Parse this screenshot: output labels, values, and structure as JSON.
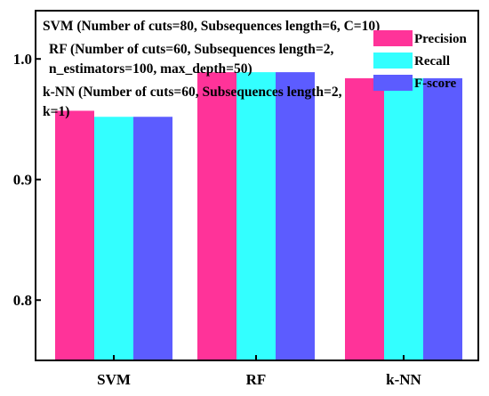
{
  "chart_data": {
    "type": "bar",
    "categories": [
      "SVM",
      "RF",
      "k-NN"
    ],
    "series": [
      {
        "name": "Precision",
        "color": "#ff3399",
        "values": [
          0.957,
          0.989,
          0.984
        ]
      },
      {
        "name": "Recall",
        "color": "#33ffff",
        "values": [
          0.952,
          0.989,
          0.984
        ]
      },
      {
        "name": "F-score",
        "color": "#5c5cff",
        "values": [
          0.952,
          0.989,
          0.984
        ]
      }
    ],
    "ylim": [
      0.75,
      1.04
    ],
    "yticks": [
      {
        "value": 0.8,
        "label": "0.8"
      },
      {
        "value": 0.9,
        "label": "0.9"
      },
      {
        "value": 1.0,
        "label": "1.0"
      }
    ],
    "title": "",
    "xlabel": "",
    "ylabel": "",
    "annotations": [
      "SVM (Number of cuts=80, Subsequences length=6, C=10)",
      "RF (Number of cuts=60, Subsequences length=2,",
      "n_estimators=100, max_depth=50)",
      "k-NN (Number of cuts=60, Subsequences length=2,",
      "k=1)"
    ],
    "legend_position": "top-right",
    "grid": false
  }
}
